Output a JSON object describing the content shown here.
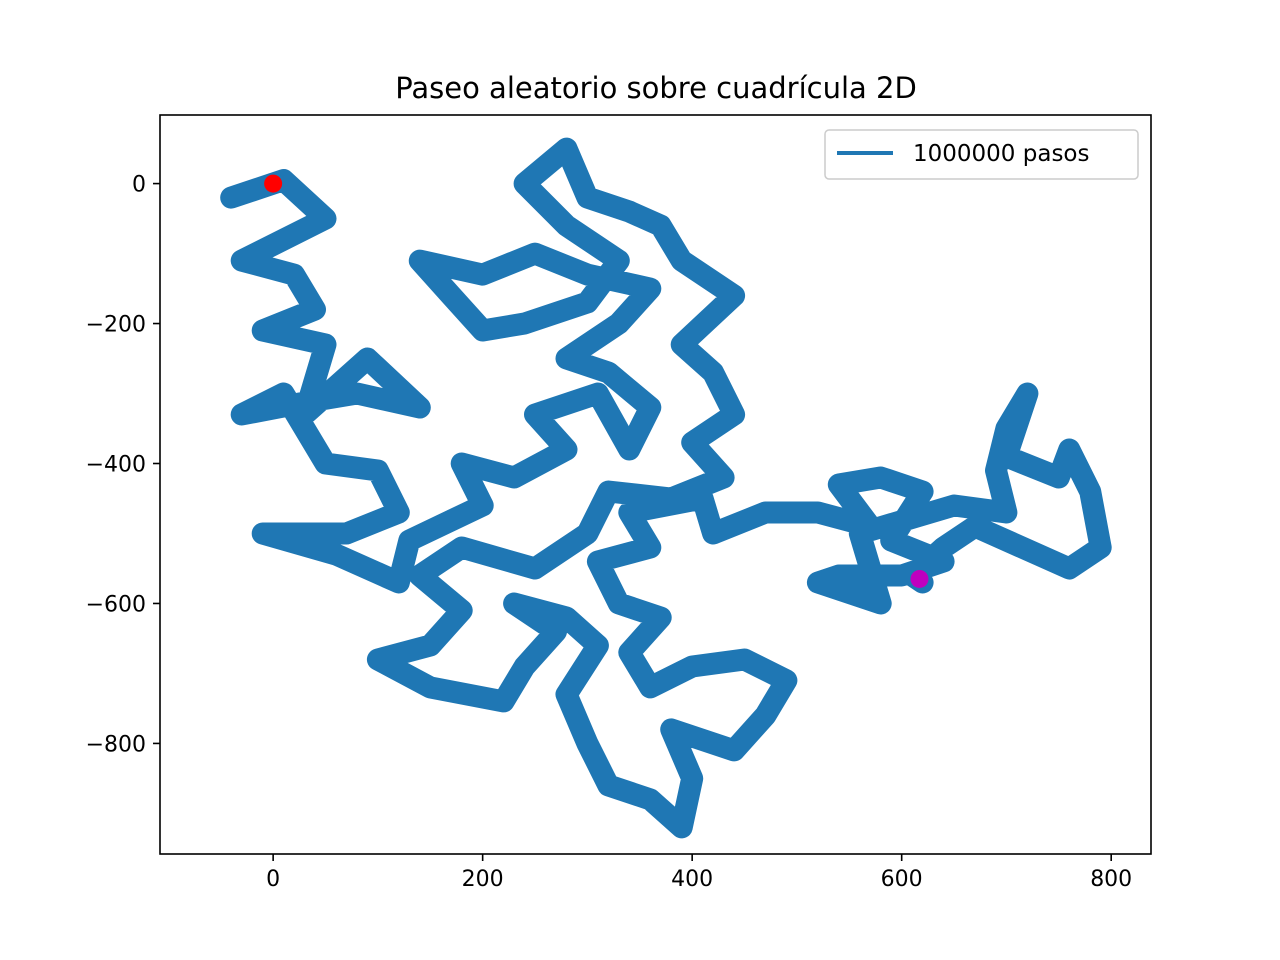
{
  "chart_data": {
    "type": "line",
    "title": "Paseo aleatorio sobre cuadrícula 2D",
    "xlabel": "",
    "ylabel": "",
    "xlim": [
      -108,
      838
    ],
    "ylim": [
      -958,
      98
    ],
    "x_ticks": [
      0,
      200,
      400,
      600,
      800
    ],
    "y_ticks": [
      0,
      -200,
      -400,
      -600,
      -800
    ],
    "x_tick_labels": [
      "0",
      "200",
      "400",
      "600",
      "800"
    ],
    "y_tick_labels": [
      "0",
      "−200",
      "−400",
      "−600",
      "−800"
    ],
    "grid": false,
    "legend_position": "upper right",
    "series": [
      {
        "name": "1000000 pasos",
        "color": "#1f77b4",
        "steps": 1000000,
        "points": [
          [
            0,
            0
          ],
          [
            -40,
            -20
          ],
          [
            10,
            5
          ],
          [
            50,
            -50
          ],
          [
            -30,
            -110
          ],
          [
            20,
            -130
          ],
          [
            40,
            -180
          ],
          [
            -10,
            -210
          ],
          [
            50,
            -230
          ],
          [
            30,
            -330
          ],
          [
            90,
            -250
          ],
          [
            140,
            -320
          ],
          [
            80,
            -300
          ],
          [
            40,
            -310
          ],
          [
            -30,
            -330
          ],
          [
            10,
            -300
          ],
          [
            50,
            -400
          ],
          [
            100,
            -410
          ],
          [
            120,
            -470
          ],
          [
            70,
            -500
          ],
          [
            -10,
            -500
          ],
          [
            60,
            -530
          ],
          [
            120,
            -570
          ],
          [
            130,
            -510
          ],
          [
            200,
            -460
          ],
          [
            180,
            -400
          ],
          [
            230,
            -420
          ],
          [
            280,
            -380
          ],
          [
            250,
            -330
          ],
          [
            310,
            -300
          ],
          [
            340,
            -380
          ],
          [
            360,
            -320
          ],
          [
            320,
            -270
          ],
          [
            280,
            -250
          ],
          [
            330,
            -200
          ],
          [
            360,
            -150
          ],
          [
            300,
            -130
          ],
          [
            250,
            -100
          ],
          [
            200,
            -130
          ],
          [
            140,
            -110
          ],
          [
            170,
            -160
          ],
          [
            200,
            -210
          ],
          [
            240,
            -200
          ],
          [
            300,
            -170
          ],
          [
            330,
            -110
          ],
          [
            280,
            -60
          ],
          [
            240,
            0
          ],
          [
            280,
            50
          ],
          [
            300,
            -20
          ],
          [
            340,
            -40
          ],
          [
            370,
            -60
          ],
          [
            390,
            -110
          ],
          [
            440,
            -160
          ],
          [
            390,
            -230
          ],
          [
            420,
            -270
          ],
          [
            440,
            -330
          ],
          [
            400,
            -370
          ],
          [
            430,
            -420
          ],
          [
            380,
            -450
          ],
          [
            320,
            -440
          ],
          [
            300,
            -500
          ],
          [
            250,
            -550
          ],
          [
            180,
            -520
          ],
          [
            140,
            -560
          ],
          [
            180,
            -610
          ],
          [
            150,
            -660
          ],
          [
            100,
            -680
          ],
          [
            150,
            -720
          ],
          [
            220,
            -740
          ],
          [
            240,
            -690
          ],
          [
            270,
            -640
          ],
          [
            230,
            -600
          ],
          [
            280,
            -620
          ],
          [
            310,
            -660
          ],
          [
            280,
            -730
          ],
          [
            300,
            -800
          ],
          [
            320,
            -860
          ],
          [
            360,
            -880
          ],
          [
            390,
            -920
          ],
          [
            400,
            -850
          ],
          [
            380,
            -780
          ],
          [
            440,
            -810
          ],
          [
            470,
            -760
          ],
          [
            490,
            -710
          ],
          [
            450,
            -680
          ],
          [
            400,
            -690
          ],
          [
            360,
            -720
          ],
          [
            340,
            -670
          ],
          [
            370,
            -620
          ],
          [
            330,
            -600
          ],
          [
            310,
            -540
          ],
          [
            360,
            -520
          ],
          [
            340,
            -470
          ],
          [
            410,
            -450
          ],
          [
            420,
            -500
          ],
          [
            470,
            -470
          ],
          [
            520,
            -470
          ],
          [
            570,
            -490
          ],
          [
            540,
            -430
          ],
          [
            580,
            -420
          ],
          [
            620,
            -440
          ],
          [
            590,
            -510
          ],
          [
            640,
            -540
          ],
          [
            600,
            -560
          ],
          [
            540,
            -560
          ],
          [
            520,
            -570
          ],
          [
            580,
            -600
          ],
          [
            560,
            -500
          ],
          [
            650,
            -460
          ],
          [
            700,
            -470
          ],
          [
            690,
            -410
          ],
          [
            700,
            -350
          ],
          [
            720,
            -300
          ],
          [
            700,
            -390
          ],
          [
            750,
            -420
          ],
          [
            760,
            -380
          ],
          [
            780,
            -440
          ],
          [
            790,
            -520
          ],
          [
            760,
            -550
          ],
          [
            730,
            -530
          ],
          [
            670,
            -490
          ],
          [
            640,
            -520
          ],
          [
            610,
            -560
          ],
          [
            620,
            -570
          ],
          [
            617,
            -565
          ]
        ]
      }
    ],
    "start_point": {
      "x": 0,
      "y": 0,
      "color": "#ff0000"
    },
    "end_point": {
      "x": 617,
      "y": -565,
      "color": "#bf00bf"
    }
  }
}
